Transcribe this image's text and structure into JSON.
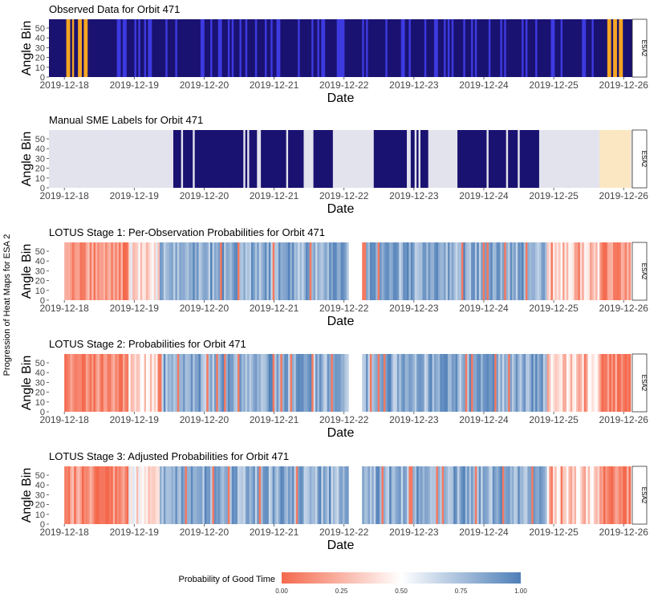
{
  "chart_data": {
    "type": "heatmap",
    "outer_ylabel": "Progression of Heat Maps for ESA 2",
    "legend": {
      "title": "Probability of Good Time",
      "ticks": [
        "0.00",
        "0.25",
        "0.50",
        "0.75",
        "1.00"
      ],
      "colors": {
        "low": "#f4694d",
        "mid": "#ffffff",
        "high": "#4f7fb8"
      }
    },
    "x_ticks": [
      "2019-12-18",
      "2019-12-19",
      "2019-12-20",
      "2019-12-21",
      "2019-12-22",
      "2019-12-23",
      "2019-12-24",
      "2019-12-25",
      "2019-12-26"
    ],
    "y_ticks": [
      "0",
      "10",
      "20",
      "30",
      "40",
      "50"
    ],
    "y_range": [
      0,
      59
    ],
    "panels": [
      {
        "title": "Observed Data for Orbit 471",
        "ylabel": "Angle Bin",
        "xlabel": "Date",
        "strip": "ESA2",
        "kind": "observed",
        "colors": {
          "background": "#1a1270",
          "counts": "#3d3ae0",
          "high": "#f5a623"
        },
        "gap_days": [
          [
            4.05,
            4.25
          ]
        ]
      },
      {
        "title": "Manual SME Labels for Orbit 471",
        "ylabel": "Angle Bin",
        "xlabel": "Date",
        "strip": "ESA2",
        "kind": "sme",
        "colors": {
          "labeled_bad": "#e3e3ee",
          "observed": "#1a1270",
          "high": "#fbe7c2"
        },
        "gap_days": [
          [
            4.05,
            4.25
          ]
        ]
      },
      {
        "title": "LOTUS Stage 1: Per-Observation Probabilities for Orbit 471",
        "ylabel": "Angle Bin",
        "xlabel": "Date",
        "strip": "ESA2",
        "kind": "prob",
        "gap_days": [
          [
            4.05,
            4.25
          ]
        ]
      },
      {
        "title": "LOTUS Stage 2: Probabilities for Orbit 471",
        "ylabel": "Angle Bin",
        "xlabel": "Date",
        "strip": "ESA2",
        "kind": "prob",
        "gap_days": [
          [
            4.05,
            4.25
          ]
        ]
      },
      {
        "title": "LOTUS Stage 3: Adjusted Probabilities for Orbit 471",
        "ylabel": "Angle Bin",
        "xlabel": "Date",
        "strip": "ESA2",
        "kind": "prob",
        "gap_days": [
          [
            4.05,
            4.25
          ]
        ]
      }
    ]
  }
}
